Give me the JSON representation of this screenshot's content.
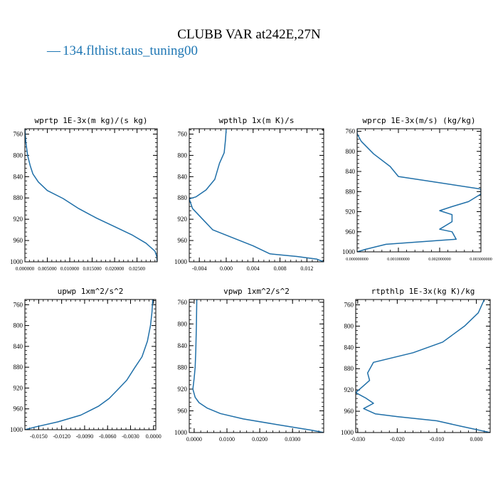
{
  "figure": {
    "title": "CLUBB VAR at242E,27N",
    "legend_label": "134.flthist.taus_tuning00",
    "legend_marker": "—",
    "line_color": "#1f6fa8",
    "legend_color": "#1f77b4"
  },
  "chart_data": [
    {
      "type": "line",
      "title": "wprtp   1E-3x(m kg)/(s kg)",
      "xlim": [
        0.0,
        0.0295
      ],
      "ylim": [
        1000,
        750
      ],
      "x_ticks": [
        0.0,
        0.005,
        0.01,
        0.015,
        0.02,
        0.025
      ],
      "x_tick_labels": [
        "0.000000",
        "0.005000",
        "0.010000",
        "0.015000",
        "0.020000",
        "0.02500"
      ],
      "y_ticks": [
        760,
        800,
        840,
        880,
        920,
        960,
        1000
      ],
      "y_tick_labels": [
        "760",
        "800",
        "840",
        "880",
        "920",
        "960",
        "1000"
      ],
      "series": [
        {
          "x": [
            0.0,
            0.0002,
            0.0006,
            0.0012,
            0.0018,
            0.003,
            0.005,
            0.0085,
            0.012,
            0.016,
            0.02,
            0.024,
            0.027,
            0.029,
            0.0294,
            0.0295
          ],
          "y": [
            750,
            775,
            800,
            820,
            835,
            850,
            866,
            881,
            900,
            918,
            934,
            950,
            965,
            980,
            990,
            1000
          ]
        }
      ]
    },
    {
      "type": "line",
      "title": "wpthlp   1x(m K)/s",
      "xlim": [
        -0.0055,
        0.0145
      ],
      "ylim": [
        1000,
        750
      ],
      "x_ticks": [
        -0.004,
        0.0,
        0.004,
        0.008,
        0.012
      ],
      "x_tick_labels": [
        "-0.004",
        "0.000",
        "0.004",
        "0.008",
        "0.012"
      ],
      "y_ticks": [
        760,
        800,
        840,
        880,
        920,
        960,
        1000
      ],
      "y_tick_labels": [
        "760",
        "800",
        "840",
        "880",
        "920",
        "960",
        "1000"
      ],
      "series": [
        {
          "x": [
            0.0,
            -0.0001,
            -0.0003,
            -0.001,
            -0.0017,
            -0.003,
            -0.0045,
            -0.0055,
            -0.005,
            -0.0035,
            -0.002,
            0.001,
            0.004,
            0.0065,
            0.0105,
            0.0135,
            0.0145
          ],
          "y": [
            750,
            770,
            795,
            815,
            845,
            865,
            878,
            882,
            900,
            920,
            940,
            955,
            970,
            985,
            990,
            995,
            1000
          ]
        }
      ]
    },
    {
      "type": "line",
      "title": "wprcp   1E-3x(m/s) (kg/kg)",
      "xlim": [
        0.0,
        0.003
      ],
      "ylim": [
        1000,
        755
      ],
      "x_ticks": [
        0.0,
        0.001,
        0.002,
        0.003
      ],
      "x_tick_labels": [
        "0.000000000",
        "0.001000000",
        "0.002000000",
        "0.003000000"
      ],
      "y_ticks": [
        760,
        800,
        840,
        880,
        920,
        960,
        1000
      ],
      "y_tick_labels": [
        "760",
        "800",
        "840",
        "880",
        "920",
        "960",
        "1000"
      ],
      "series": [
        {
          "x": [
            0.0,
            0.0,
            0.0001,
            0.0004,
            0.0008,
            0.001,
            0.0018,
            0.003,
            0.003,
            0.0027,
            0.0023,
            0.002,
            0.0023,
            0.0023,
            0.002,
            0.0023,
            0.0024,
            0.0007,
            0.0002,
            0.0
          ],
          "y": [
            755,
            765,
            780,
            805,
            830,
            850,
            860,
            875,
            885,
            900,
            910,
            918,
            926,
            940,
            955,
            960,
            975,
            985,
            995,
            1000
          ]
        }
      ]
    },
    {
      "type": "line",
      "title": "upwp   1xm^2/s^2",
      "xlim": [
        -0.0168,
        0.0003
      ],
      "ylim": [
        1000,
        750
      ],
      "x_ticks": [
        -0.015,
        -0.012,
        -0.009,
        -0.006,
        -0.003,
        0.0
      ],
      "x_tick_labels": [
        "-0.0150",
        "-0.0120",
        "-0.0090",
        "-0.0060",
        "-0.0030",
        "0.0000"
      ],
      "y_ticks": [
        760,
        800,
        840,
        880,
        920,
        960,
        1000
      ],
      "y_tick_labels": [
        "760",
        "800",
        "840",
        "880",
        "920",
        "960",
        "1000"
      ],
      "series": [
        {
          "x": [
            -0.0001,
            -0.0002,
            -0.0004,
            -0.0008,
            -0.0015,
            -0.0025,
            -0.0035,
            -0.0048,
            -0.0058,
            -0.0072,
            -0.0095,
            -0.0125,
            -0.0155,
            -0.0168
          ],
          "y": [
            750,
            775,
            800,
            830,
            860,
            882,
            905,
            925,
            940,
            955,
            972,
            985,
            995,
            1000
          ]
        }
      ]
    },
    {
      "type": "line",
      "title": "vpwp   1xm^2/s^2",
      "xlim": [
        -0.0015,
        0.0395
      ],
      "ylim": [
        1000,
        755
      ],
      "x_ticks": [
        0.0,
        0.01,
        0.02,
        0.03
      ],
      "x_tick_labels": [
        "0.0000",
        "0.0100",
        "0.0200",
        "0.0300"
      ],
      "y_ticks": [
        760,
        800,
        840,
        880,
        920,
        960,
        1000
      ],
      "y_tick_labels": [
        "760",
        "800",
        "840",
        "880",
        "920",
        "960",
        "1000"
      ],
      "series": [
        {
          "x": [
            0.0008,
            0.0007,
            0.0005,
            0.0003,
            0.0,
            -0.0004,
            0.0003,
            0.0015,
            0.004,
            0.008,
            0.015,
            0.025,
            0.036,
            0.0395
          ],
          "y": [
            755,
            800,
            850,
            880,
            900,
            920,
            935,
            945,
            955,
            965,
            975,
            985,
            996,
            1000
          ]
        }
      ]
    },
    {
      "type": "line",
      "title": "rtpthlp   1E-3x(kg K)/kg",
      "xlim": [
        -0.0305,
        0.0035
      ],
      "ylim": [
        1000,
        750
      ],
      "x_ticks": [
        -0.03,
        -0.02,
        -0.01,
        0.0
      ],
      "x_tick_labels": [
        "-0.030",
        "-0.020",
        "-0.010",
        "0.000"
      ],
      "y_ticks": [
        760,
        800,
        840,
        880,
        920,
        960,
        1000
      ],
      "y_tick_labels": [
        "760",
        "800",
        "840",
        "880",
        "920",
        "960",
        "1000"
      ],
      "series": [
        {
          "x": [
            0.002,
            0.0005,
            -0.003,
            -0.0085,
            -0.016,
            -0.026,
            -0.0275,
            -0.027,
            -0.0285,
            -0.0305,
            -0.028,
            -0.026,
            -0.0285,
            -0.0255,
            -0.02,
            -0.01,
            -0.004,
            0.0035
          ],
          "y": [
            750,
            775,
            800,
            830,
            850,
            868,
            888,
            902,
            912,
            925,
            935,
            945,
            955,
            965,
            970,
            978,
            988,
            1000
          ]
        }
      ]
    }
  ]
}
